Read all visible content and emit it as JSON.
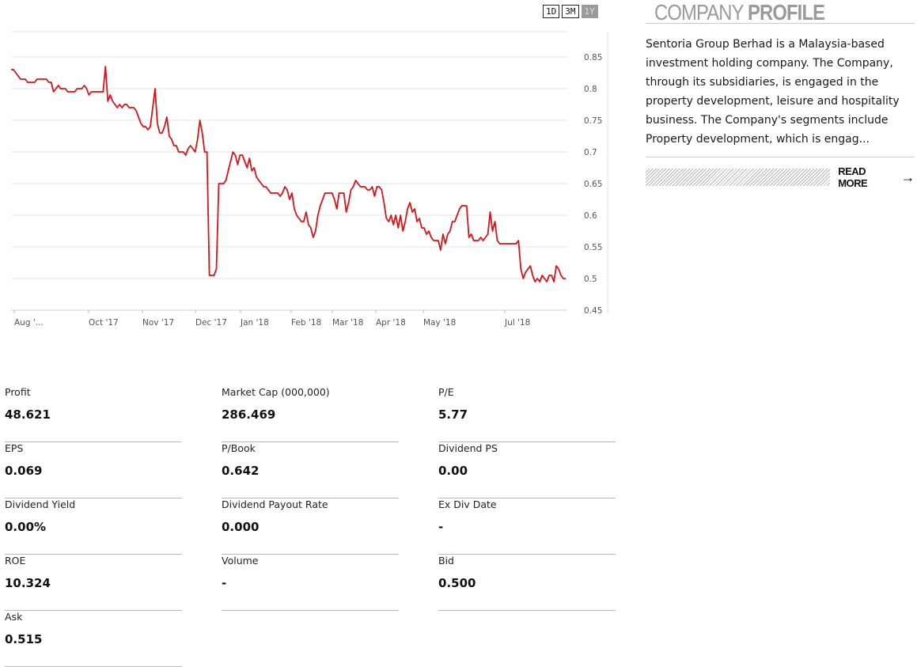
{
  "chart": {
    "range_buttons": [
      "1D",
      "3M",
      "1Y"
    ],
    "active_range": "1Y",
    "line_color": "#d7141a"
  },
  "chart_data": {
    "type": "line",
    "title": "",
    "ylim": [
      0.45,
      0.89
    ],
    "yticks": [
      "0.85",
      "0.8",
      "0.75",
      "0.7",
      "0.65",
      "0.6",
      "0.55",
      "0.5",
      "0.45"
    ],
    "xticks": [
      "Aug '...",
      "Oct '17",
      "Nov '17",
      "Dec '17",
      "Jan '18",
      "Feb '18",
      "Mar '18",
      "Apr '18",
      "May '18",
      "Jul '18"
    ],
    "grid": true,
    "series": [
      {
        "values": [
          0.83,
          0.83,
          0.825,
          0.82,
          0.815,
          0.815,
          0.815,
          0.81,
          0.81,
          0.81,
          0.81,
          0.815,
          0.815,
          0.815,
          0.815,
          0.815,
          0.81,
          0.81,
          0.795,
          0.8,
          0.805,
          0.8,
          0.8,
          0.8,
          0.795,
          0.795,
          0.795,
          0.795,
          0.8,
          0.8,
          0.8,
          0.805,
          0.8,
          0.79,
          0.795,
          0.795,
          0.795,
          0.795,
          0.795,
          0.795,
          0.835,
          0.78,
          0.79,
          0.78,
          0.775,
          0.77,
          0.775,
          0.77,
          0.775,
          0.775,
          0.77,
          0.77,
          0.77,
          0.765,
          0.755,
          0.745,
          0.74,
          0.74,
          0.735,
          0.74,
          0.77,
          0.8,
          0.745,
          0.73,
          0.73,
          0.74,
          0.755,
          0.725,
          0.72,
          0.71,
          0.71,
          0.7,
          0.7,
          0.7,
          0.695,
          0.705,
          0.71,
          0.705,
          0.7,
          0.72,
          0.75,
          0.73,
          0.7,
          0.7,
          0.505,
          0.505,
          0.505,
          0.515,
          0.65,
          0.65,
          0.65,
          0.655,
          0.67,
          0.685,
          0.7,
          0.695,
          0.68,
          0.695,
          0.695,
          0.685,
          0.675,
          0.69,
          0.67,
          0.675,
          0.66,
          0.655,
          0.65,
          0.645,
          0.645,
          0.64,
          0.635,
          0.635,
          0.635,
          0.635,
          0.63,
          0.635,
          0.645,
          0.64,
          0.625,
          0.635,
          0.61,
          0.6,
          0.595,
          0.59,
          0.59,
          0.605,
          0.585,
          0.58,
          0.565,
          0.575,
          0.6,
          0.615,
          0.625,
          0.635,
          0.635,
          0.635,
          0.635,
          0.625,
          0.61,
          0.635,
          0.635,
          0.635,
          0.605,
          0.62,
          0.64,
          0.645,
          0.655,
          0.65,
          0.645,
          0.645,
          0.645,
          0.64,
          0.64,
          0.645,
          0.63,
          0.645,
          0.645,
          0.64,
          0.62,
          0.595,
          0.59,
          0.6,
          0.585,
          0.6,
          0.58,
          0.6,
          0.575,
          0.59,
          0.61,
          0.62,
          0.605,
          0.61,
          0.59,
          0.595,
          0.58,
          0.58,
          0.57,
          0.575,
          0.565,
          0.56,
          0.56,
          0.56,
          0.545,
          0.57,
          0.555,
          0.57,
          0.575,
          0.59,
          0.59,
          0.6,
          0.61,
          0.615,
          0.615,
          0.615,
          0.565,
          0.57,
          0.56,
          0.56,
          0.56,
          0.565,
          0.56,
          0.565,
          0.57,
          0.605,
          0.575,
          0.59,
          0.56,
          0.555,
          0.555,
          0.555,
          0.555,
          0.555,
          0.555,
          0.555,
          0.555,
          0.56,
          0.515,
          0.5,
          0.51,
          0.515,
          0.52,
          0.505,
          0.495,
          0.5,
          0.495,
          0.505,
          0.5,
          0.495,
          0.505,
          0.505,
          0.495,
          0.52,
          0.515,
          0.505,
          0.5,
          0.5
        ]
      }
    ]
  },
  "profile": {
    "title_light": "COMPANY",
    "title_bold": "PROFILE",
    "description": "Sentoria Group Berhad is a Malaysia-based investment holding company. The Company, through its subsidiaries, is engaged in the property development, leisure and hospitality business. The Company's segments include Property development, which is engag...",
    "read_more": "READ MORE",
    "arrow_icon": "arrow-right-icon"
  },
  "stats": [
    {
      "label": "Profit",
      "value": "48.621"
    },
    {
      "label": "Market Cap    (000,000)",
      "value": "286.469"
    },
    {
      "label": "P/E",
      "value": "5.77"
    },
    {
      "label": "EPS",
      "value": "0.069"
    },
    {
      "label": "P/Book",
      "value": "0.642"
    },
    {
      "label": "Dividend PS",
      "value": "0.00"
    },
    {
      "label": "Dividend Yield",
      "value": "0.00%"
    },
    {
      "label": "Dividend Payout Rate",
      "value": "0.000"
    },
    {
      "label": "Ex Div Date",
      "value": "-"
    },
    {
      "label": "ROE",
      "value": "10.324"
    },
    {
      "label": "Volume",
      "value": "-"
    },
    {
      "label": "Bid",
      "value": "0.500"
    },
    {
      "label": "Ask",
      "value": "0.515"
    }
  ]
}
